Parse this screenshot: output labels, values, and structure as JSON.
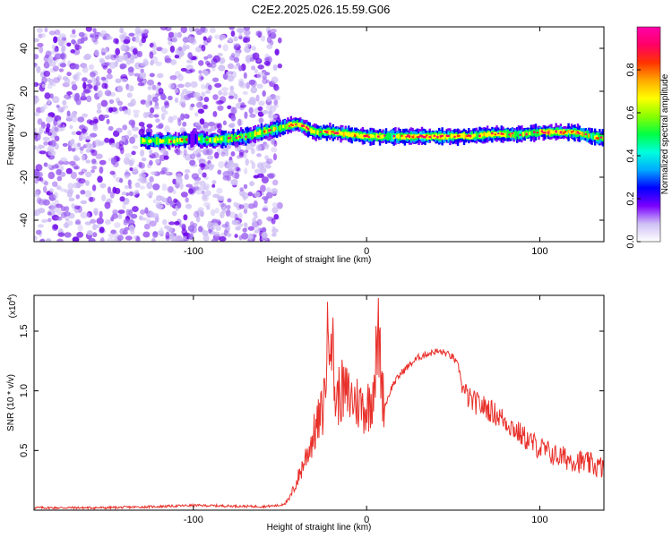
{
  "title": "C2E2.2025.026.15.59.G06",
  "chart_data": [
    {
      "type": "heatmap",
      "xlabel": "Height of straight line (km)",
      "ylabel": "Frequency (Hz)",
      "xlim": [
        -192,
        137
      ],
      "ylim": [
        -50,
        50
      ],
      "xticks": [
        -100,
        0,
        100
      ],
      "xtick_labels": [
        "-100",
        "0",
        "100"
      ],
      "yticks": [
        -40,
        -20,
        0,
        20,
        40
      ],
      "ytick_labels": [
        "-40",
        "-20",
        "0",
        "20",
        "40"
      ],
      "ridge_center_hz": {
        "x": [
          -130,
          -120,
          -110,
          -100,
          -90,
          -80,
          -70,
          -60,
          -50,
          -40,
          -30,
          -20,
          -10,
          0,
          10,
          20,
          30,
          40,
          50,
          60,
          70,
          80,
          90,
          100,
          110,
          120,
          130,
          137
        ],
        "y": [
          -3,
          -3,
          -3,
          -2,
          -3,
          -2,
          -1,
          1,
          3,
          5,
          1,
          1,
          0,
          -1,
          -1,
          -1,
          -1,
          -1,
          -1,
          -1,
          0,
          0,
          0,
          1,
          1,
          1,
          -1,
          -2
        ]
      },
      "noise_region_x": [
        -192,
        -50
      ],
      "colorbar": {
        "label": "Normalized spectral amplitude",
        "range": [
          0,
          1
        ],
        "ticks": [
          0.0,
          0.2,
          0.4,
          0.6,
          0.8
        ],
        "tick_labels": [
          "0.0",
          "0.2",
          "0.4",
          "0.6",
          "0.8"
        ],
        "colors": [
          "#ffffff",
          "#cfc0f5",
          "#7a00ff",
          "#0000ff",
          "#00aaff",
          "#00ffdd",
          "#00ff44",
          "#88ff00",
          "#ffff00",
          "#ffaa00",
          "#ff3300",
          "#ff0066",
          "#ff00aa"
        ]
      }
    },
    {
      "type": "line",
      "xlabel": "Height of straight line (km)",
      "ylabel": "SNR (10 * v/v)",
      "y_multiplier_label": "(x10",
      "y_multiplier_exp": "4",
      "y_multiplier_close": ")",
      "xlim": [
        -192,
        137
      ],
      "ylim": [
        0,
        1.8
      ],
      "xticks": [
        -100,
        0,
        100
      ],
      "xtick_labels": [
        "-100",
        "0",
        "100"
      ],
      "yticks": [
        0.5,
        1.0,
        1.5
      ],
      "ytick_labels": [
        "0.5",
        "1.0",
        "1.5"
      ],
      "series": [
        {
          "color": "#e8302a",
          "x": [
            -192,
            -150,
            -120,
            -100,
            -60,
            -50,
            -45,
            -40,
            -35,
            -30,
            -25,
            -21,
            -18,
            -15,
            -10,
            -5,
            0,
            3,
            7,
            10,
            15,
            20,
            25,
            30,
            35,
            40,
            45,
            50,
            53,
            56,
            60,
            70,
            80,
            90,
            100,
            110,
            120,
            130,
            137
          ],
          "y": [
            0.02,
            0.02,
            0.03,
            0.04,
            0.03,
            0.04,
            0.08,
            0.25,
            0.45,
            0.65,
            0.85,
            1.75,
            0.9,
            1.0,
            0.95,
            0.9,
            0.85,
            0.95,
            1.45,
            0.85,
            1.05,
            1.15,
            1.22,
            1.28,
            1.31,
            1.33,
            1.32,
            1.28,
            1.2,
            1.0,
            0.92,
            0.85,
            0.75,
            0.62,
            0.52,
            0.45,
            0.42,
            0.38,
            0.35
          ]
        }
      ]
    }
  ]
}
